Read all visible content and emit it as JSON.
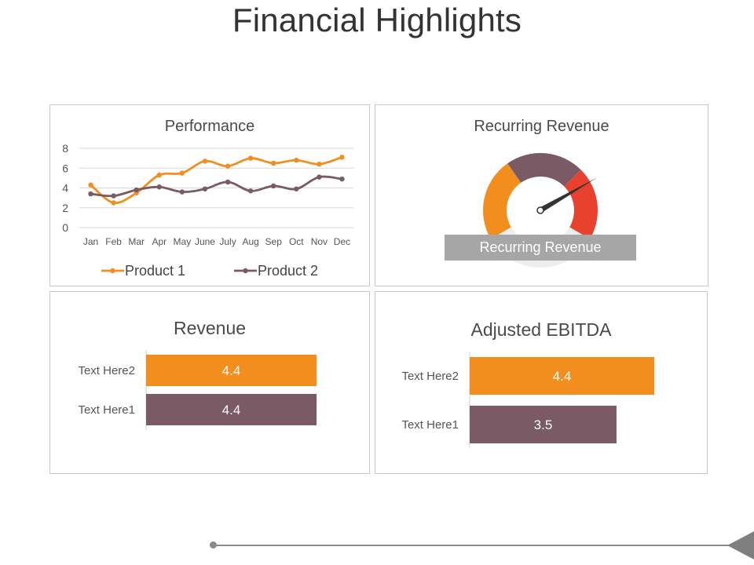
{
  "slide": {
    "title": "Financial Highlights"
  },
  "colors": {
    "orange": "#F28E1E",
    "mauve": "#7A5A64",
    "red": "#E8412D",
    "grid": "#D9D9D9",
    "needle": "#333333",
    "caption_bg": "#A6A6A6"
  },
  "chart_data": [
    {
      "type": "line",
      "title": "Performance",
      "categories": [
        "Jan",
        "Feb",
        "Mar",
        "Apr",
        "May",
        "June",
        "July",
        "Aug",
        "Sep",
        "Oct",
        "Nov",
        "Dec"
      ],
      "series": [
        {
          "name": "Product 1",
          "values": [
            4.3,
            2.5,
            3.5,
            5.3,
            5.5,
            6.7,
            6.2,
            7.0,
            6.5,
            6.8,
            6.4,
            7.1
          ]
        },
        {
          "name": "Product 2",
          "values": [
            3.4,
            3.2,
            3.8,
            4.1,
            3.6,
            3.9,
            4.6,
            3.7,
            4.2,
            3.9,
            5.1,
            4.9
          ]
        }
      ],
      "ylim": [
        0,
        8
      ],
      "yticks": [
        "0",
        "2",
        "4",
        "6",
        "8"
      ],
      "grid": true,
      "legend": "bottom"
    },
    {
      "type": "gauge",
      "title": "Recurring Revenue",
      "caption": "Recurring Revenue",
      "segments": [
        "orange",
        "mauve",
        "red"
      ],
      "needle_value": 0.75
    },
    {
      "type": "bar",
      "orientation": "horizontal",
      "title": "Revenue",
      "categories": [
        "Text Here2",
        "Text Here1"
      ],
      "values": [
        4.4,
        4.4
      ],
      "value_labels": [
        "4.4",
        "4.4"
      ],
      "xlim": [
        0,
        4.4
      ]
    },
    {
      "type": "bar",
      "orientation": "horizontal",
      "title": "Adjusted EBITDA",
      "categories": [
        "Text Here2",
        "Text Here1"
      ],
      "values": [
        4.4,
        3.5
      ],
      "value_labels": [
        "4.4",
        "3.5"
      ],
      "xlim": [
        0,
        4.4
      ]
    }
  ]
}
